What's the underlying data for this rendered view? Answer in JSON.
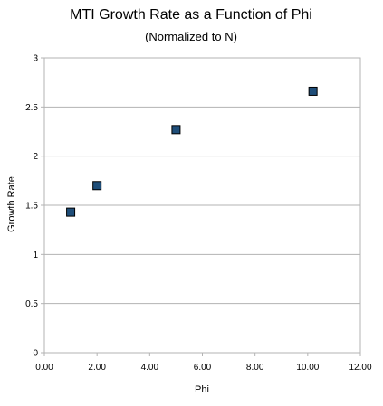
{
  "chart_data": {
    "type": "scatter",
    "title": "MTI Growth Rate as a Function of Phi",
    "subtitle": "(Normalized to N)",
    "xlabel": "Phi",
    "ylabel": "Growth Rate",
    "xlim": [
      0,
      12
    ],
    "ylim": [
      0,
      3
    ],
    "x_ticks": [
      "0.00",
      "2.00",
      "4.00",
      "6.00",
      "8.00",
      "10.00",
      "12.00"
    ],
    "y_ticks": [
      "0",
      "0.5",
      "1",
      "1.5",
      "2",
      "2.5",
      "3"
    ],
    "grid": "horizontal",
    "legend": "none",
    "marker": "square",
    "colors": {
      "marker_fill": "#1f4e79",
      "marker_edge": "#000000",
      "grid": "#b3b3b3",
      "frame": "#b3b3b3"
    },
    "series": [
      {
        "x": [
          1.0,
          2.0,
          5.0,
          10.2
        ],
        "y": [
          1.43,
          1.7,
          2.27,
          2.66
        ]
      }
    ]
  }
}
